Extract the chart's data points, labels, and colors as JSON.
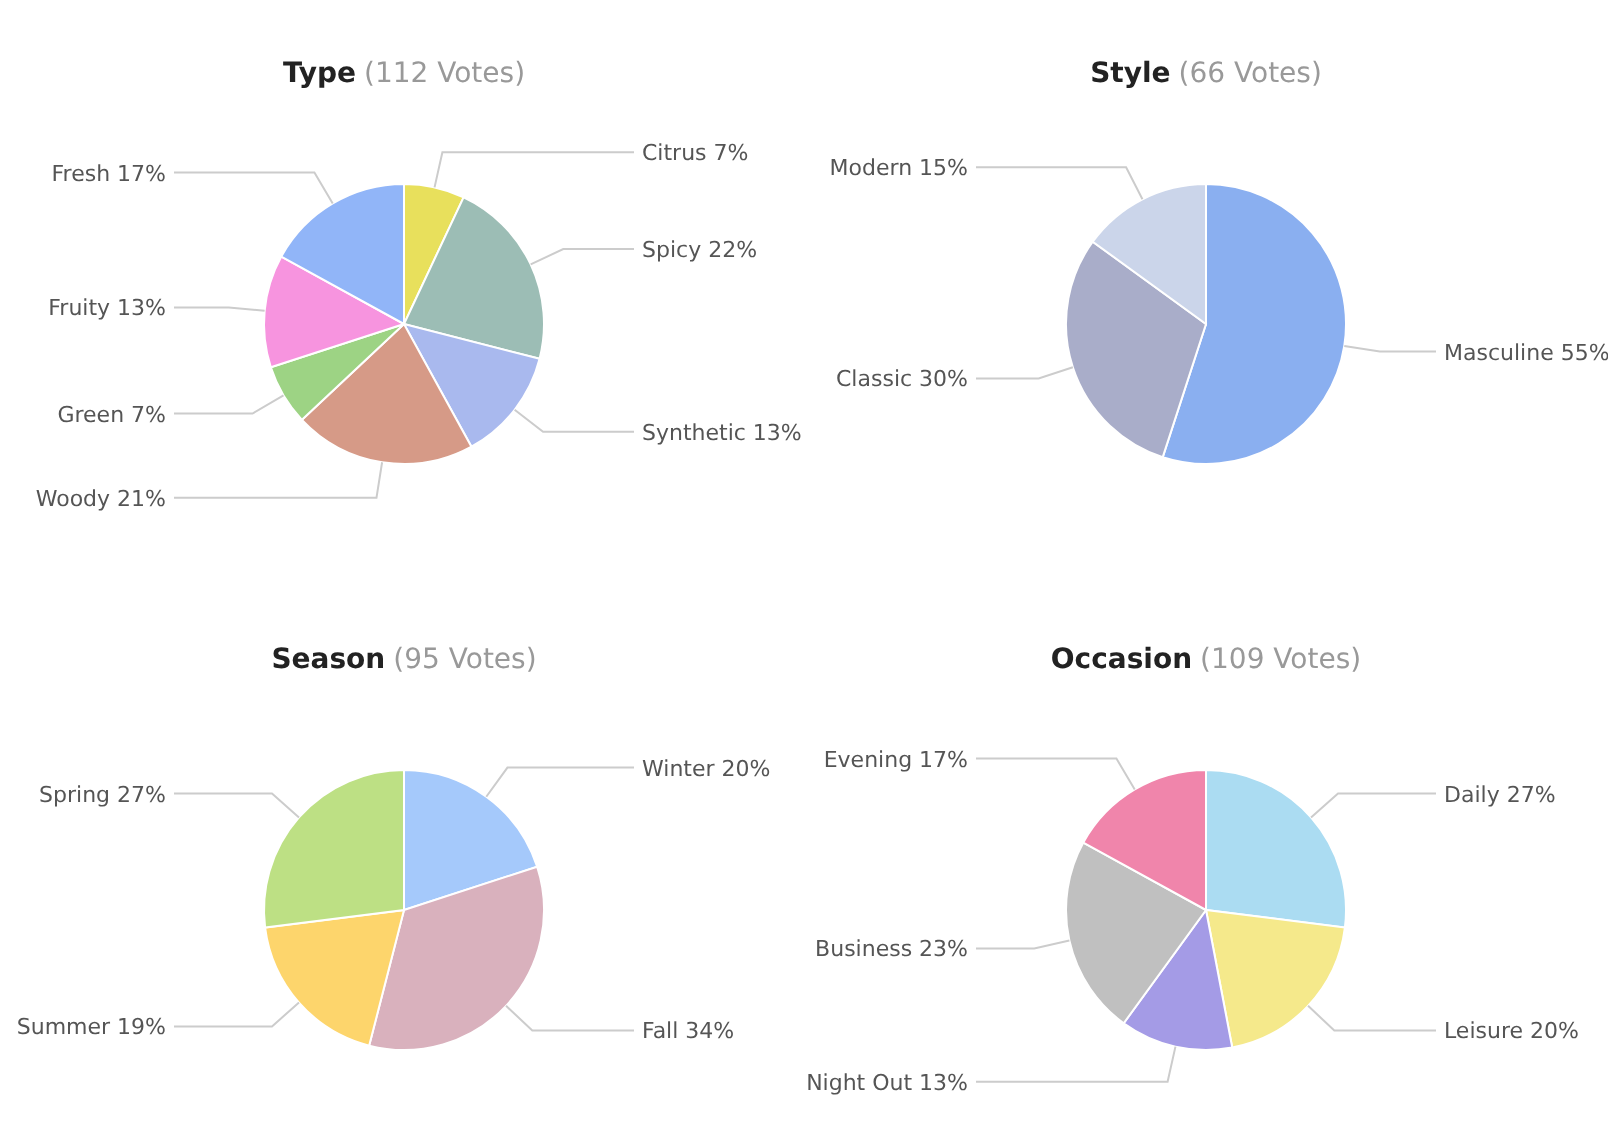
{
  "chart_data": [
    {
      "type": "pie",
      "title": "Type",
      "subtitle": "(112 Votes)",
      "categories": [
        "Citrus",
        "Spicy",
        "Synthetic",
        "Woody",
        "Green",
        "Fruity",
        "Fresh"
      ],
      "values": [
        7,
        22,
        13,
        21,
        7,
        13,
        17
      ],
      "value_labels": [
        "7%",
        "22%",
        "13%",
        "21%",
        "7%",
        "13%",
        "17%"
      ],
      "colors": [
        "#e8e05c",
        "#9cbdb5",
        "#a9b9ee",
        "#d69a87",
        "#9dd384",
        "#f794df",
        "#91b5f8"
      ]
    },
    {
      "type": "pie",
      "title": "Style",
      "subtitle": "(66 Votes)",
      "categories": [
        "Masculine",
        "Classic",
        "Modern"
      ],
      "values": [
        55,
        30,
        15
      ],
      "value_labels": [
        "55%",
        "30%",
        "15%"
      ],
      "colors": [
        "#8aaff0",
        "#a9adc9",
        "#cbd5ea"
      ]
    },
    {
      "type": "pie",
      "title": "Season",
      "subtitle": "(95 Votes)",
      "categories": [
        "Winter",
        "Fall",
        "Summer",
        "Spring"
      ],
      "values": [
        20,
        34,
        19,
        27
      ],
      "value_labels": [
        "20%",
        "34%",
        "19%",
        "27%"
      ],
      "colors": [
        "#a5c9fb",
        "#d9b1bd",
        "#fdd56c",
        "#bde084"
      ]
    },
    {
      "type": "pie",
      "title": "Occasion",
      "subtitle": "(109 Votes)",
      "categories": [
        "Daily",
        "Leisure",
        "Night Out",
        "Business",
        "Evening"
      ],
      "values": [
        27,
        20,
        13,
        23,
        17
      ],
      "value_labels": [
        "27%",
        "20%",
        "13%",
        "23%",
        "17%"
      ],
      "colors": [
        "#abdcf2",
        "#f5e98b",
        "#a49be6",
        "#c0c0c0",
        "#f085ab"
      ]
    }
  ]
}
